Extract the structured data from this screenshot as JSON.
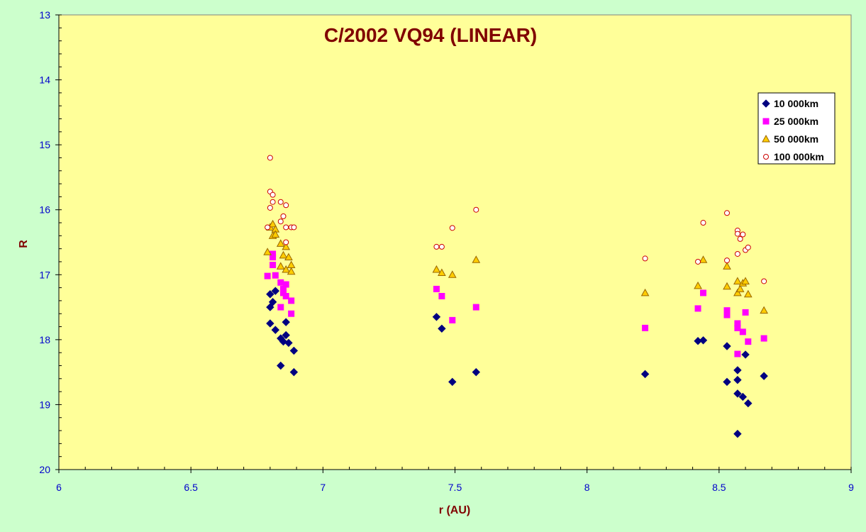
{
  "chart_data": {
    "type": "scatter",
    "title": "C/2002 VQ94 (LINEAR)",
    "xlabel": "r (AU)",
    "ylabel": "R",
    "xlim": [
      6,
      9
    ],
    "ylim": [
      13,
      20
    ],
    "y_inverted": true,
    "x_ticks": [
      "6",
      "6.5",
      "7",
      "7.5",
      "8",
      "8.5",
      "9"
    ],
    "y_ticks": [
      "13",
      "14",
      "15",
      "16",
      "17",
      "18",
      "19",
      "20"
    ],
    "grid": false,
    "legend_position": "top-right",
    "colors": {
      "page_background": "#ccffcc",
      "plot_background": "#ffff99",
      "title": "#800000",
      "tick_labels": "#0000cc"
    },
    "series": [
      {
        "name": "10 000km",
        "marker": "diamond",
        "color": "#000080",
        "points": [
          [
            6.8,
            17.5
          ],
          [
            6.8,
            17.3
          ],
          [
            6.81,
            17.42
          ],
          [
            6.82,
            17.25
          ],
          [
            6.8,
            17.75
          ],
          [
            6.82,
            17.85
          ],
          [
            6.84,
            17.98
          ],
          [
            6.85,
            18.03
          ],
          [
            6.86,
            17.93
          ],
          [
            6.87,
            18.05
          ],
          [
            6.86,
            17.73
          ],
          [
            6.89,
            18.17
          ],
          [
            6.84,
            18.4
          ],
          [
            6.89,
            18.5
          ],
          [
            7.43,
            17.65
          ],
          [
            7.45,
            17.83
          ],
          [
            7.49,
            18.65
          ],
          [
            7.58,
            18.5
          ],
          [
            8.22,
            18.53
          ],
          [
            8.42,
            18.02
          ],
          [
            8.44,
            18.01
          ],
          [
            8.53,
            18.1
          ],
          [
            8.53,
            18.65
          ],
          [
            8.57,
            18.83
          ],
          [
            8.57,
            18.47
          ],
          [
            8.57,
            18.62
          ],
          [
            8.59,
            18.88
          ],
          [
            8.6,
            18.23
          ],
          [
            8.61,
            18.98
          ],
          [
            8.57,
            19.45
          ],
          [
            8.67,
            18.56
          ]
        ]
      },
      {
        "name": "25 000km",
        "marker": "square",
        "color": "#ff00ff",
        "points": [
          [
            6.79,
            17.02
          ],
          [
            6.81,
            16.73
          ],
          [
            6.81,
            16.85
          ],
          [
            6.82,
            17.01
          ],
          [
            6.81,
            16.68
          ],
          [
            6.84,
            17.12
          ],
          [
            6.85,
            17.22
          ],
          [
            6.86,
            17.15
          ],
          [
            6.86,
            17.33
          ],
          [
            6.85,
            17.28
          ],
          [
            6.84,
            17.5
          ],
          [
            6.88,
            17.4
          ],
          [
            6.88,
            17.6
          ],
          [
            7.43,
            17.22
          ],
          [
            7.45,
            17.33
          ],
          [
            7.49,
            17.7
          ],
          [
            7.58,
            17.5
          ],
          [
            8.22,
            17.82
          ],
          [
            8.42,
            17.52
          ],
          [
            8.44,
            17.28
          ],
          [
            8.53,
            17.55
          ],
          [
            8.53,
            17.62
          ],
          [
            8.57,
            17.82
          ],
          [
            8.57,
            17.75
          ],
          [
            8.57,
            18.22
          ],
          [
            8.59,
            17.88
          ],
          [
            8.6,
            17.58
          ],
          [
            8.61,
            18.03
          ],
          [
            8.67,
            17.98
          ]
        ]
      },
      {
        "name": "50 000km",
        "marker": "triangle",
        "color": "#ff9900",
        "points": [
          [
            6.79,
            16.65
          ],
          [
            6.8,
            16.27
          ],
          [
            6.81,
            16.22
          ],
          [
            6.81,
            16.4
          ],
          [
            6.82,
            16.3
          ],
          [
            6.82,
            16.38
          ],
          [
            6.84,
            16.52
          ],
          [
            6.84,
            16.87
          ],
          [
            6.85,
            16.7
          ],
          [
            6.86,
            16.57
          ],
          [
            6.86,
            16.92
          ],
          [
            6.87,
            16.73
          ],
          [
            6.88,
            16.95
          ],
          [
            6.88,
            16.85
          ],
          [
            7.43,
            16.92
          ],
          [
            7.45,
            16.97
          ],
          [
            7.49,
            17.0
          ],
          [
            7.58,
            16.77
          ],
          [
            8.22,
            17.28
          ],
          [
            8.42,
            17.17
          ],
          [
            8.44,
            16.77
          ],
          [
            8.53,
            17.18
          ],
          [
            8.53,
            16.87
          ],
          [
            8.57,
            17.1
          ],
          [
            8.57,
            17.28
          ],
          [
            8.58,
            17.22
          ],
          [
            8.59,
            17.13
          ],
          [
            8.6,
            17.1
          ],
          [
            8.61,
            17.3
          ],
          [
            8.67,
            17.55
          ]
        ]
      },
      {
        "name": "100 000km",
        "marker": "circle",
        "color": "#cc0000",
        "points": [
          [
            6.8,
            15.2
          ],
          [
            6.8,
            15.72
          ],
          [
            6.81,
            15.77
          ],
          [
            6.81,
            15.88
          ],
          [
            6.8,
            15.97
          ],
          [
            6.79,
            16.27
          ],
          [
            6.84,
            15.88
          ],
          [
            6.85,
            16.1
          ],
          [
            6.84,
            16.18
          ],
          [
            6.86,
            15.93
          ],
          [
            6.86,
            16.27
          ],
          [
            6.88,
            16.27
          ],
          [
            6.89,
            16.27
          ],
          [
            6.86,
            16.5
          ],
          [
            7.43,
            16.57
          ],
          [
            7.45,
            16.57
          ],
          [
            7.49,
            16.28
          ],
          [
            7.58,
            16.0
          ],
          [
            8.22,
            16.75
          ],
          [
            8.42,
            16.8
          ],
          [
            8.44,
            16.2
          ],
          [
            8.53,
            16.05
          ],
          [
            8.53,
            16.78
          ],
          [
            8.57,
            16.32
          ],
          [
            8.57,
            16.37
          ],
          [
            8.58,
            16.45
          ],
          [
            8.57,
            16.68
          ],
          [
            8.59,
            16.38
          ],
          [
            8.6,
            16.62
          ],
          [
            8.61,
            16.58
          ],
          [
            8.67,
            17.1
          ]
        ]
      }
    ]
  }
}
